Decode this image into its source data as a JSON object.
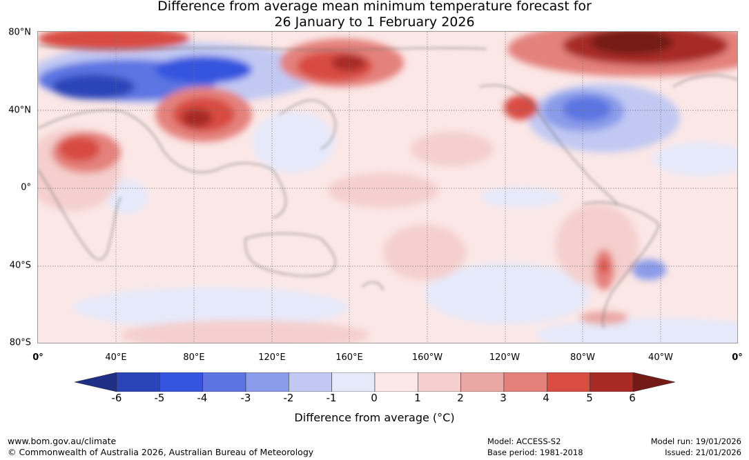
{
  "title": {
    "line1": "Difference from average mean minimum temperature forecast for",
    "line2": "26 January to 1 February 2026"
  },
  "axes": {
    "lat_labels": [
      "80°N",
      "40°N",
      "0°",
      "40°S",
      "80°S"
    ],
    "lon_labels": [
      "0°",
      "40°E",
      "80°E",
      "120°E",
      "160°E",
      "160°W",
      "120°W",
      "80°W",
      "40°W",
      "0°"
    ]
  },
  "colorbar": {
    "ticks": [
      "-6",
      "-5",
      "-4",
      "-3",
      "-2",
      "-1",
      "0",
      "1",
      "2",
      "3",
      "4",
      "5",
      "6"
    ],
    "colors": [
      "#1f2f86",
      "#2a45b8",
      "#3655df",
      "#5c74e2",
      "#8a9be9",
      "#c1c9f3",
      "#e6e9fa",
      "#fbe8e7",
      "#f4cfcd",
      "#eaa8a4",
      "#e4817b",
      "#d84c42",
      "#a82a25",
      "#741a16"
    ],
    "title": "Difference from average (°C)"
  },
  "footer": {
    "url": "www.bom.gov.au/climate",
    "copyright": "© Commonwealth of Australia 2026, Australian Bureau of Meteorology",
    "model": "Model: ACCESS-S2",
    "base_period": "Base period: 1981-2018",
    "model_run": "Model run: 19/01/2026",
    "issued": "Issued: 21/01/2026"
  }
}
